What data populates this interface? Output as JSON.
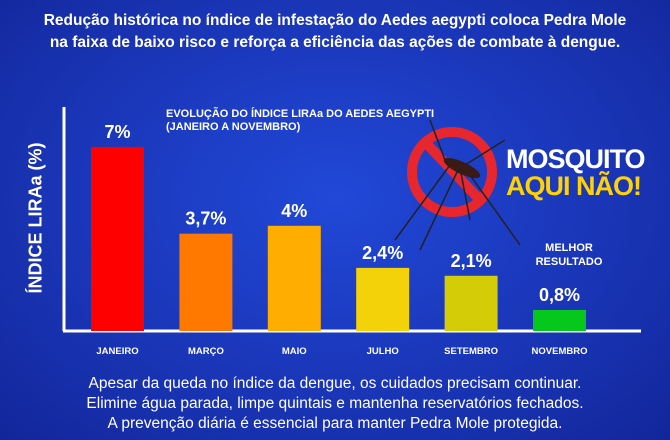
{
  "headline": [
    "Redução histórica no índice de infestação do Aedes aegypti coloca Pedra Mole",
    "na faixa de baixo risco e reforça a eficiência das ações de combate à dengue."
  ],
  "badge": {
    "line1": "MOSQUITO",
    "line2": "AQUI NÃO!"
  },
  "best_note": [
    "MELHOR",
    "RESULTADO"
  ],
  "footer": [
    "Apesar da queda no índice da dengue, os cuidados precisam continuar.",
    "Elimine água parada, limpe quintais e mantenha reservatórios fechados.",
    "A prevenção diária é essencial para manter Pedra Mole protegida."
  ],
  "chart_data": {
    "type": "bar",
    "title": [
      "EVOLUÇÃO DO ÍNDICE LIRAa DO AEDES AEGYPTI",
      "(JANEIRO A NOVEMBRO)"
    ],
    "ylabel": "ÍNDICE LIRAa (%)",
    "xlabel": "",
    "categories": [
      "JANEIRO",
      "MARÇO",
      "MAIO",
      "JULHO",
      "SETEMBRO",
      "NOVEMBRO"
    ],
    "values": [
      7,
      3.7,
      4,
      2.4,
      2.1,
      0.8
    ],
    "labels": [
      "7%",
      "3,7%",
      "4%",
      "2,4%",
      "2,1%",
      "0,8%"
    ],
    "colors": [
      "#ff0000",
      "#ff7800",
      "#ffae00",
      "#f3d20a",
      "#d3cc06",
      "#06c81c"
    ],
    "ylim": [
      0,
      8.5
    ],
    "grid": false
  }
}
